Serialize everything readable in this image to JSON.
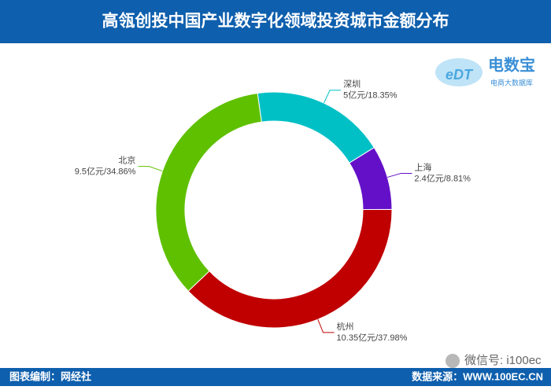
{
  "header": {
    "title": "高瓴创投中国产业数字化领域投资城市金额分布"
  },
  "logo": {
    "mark": "eDT",
    "name": "电数宝",
    "tagline": "电商大数据库"
  },
  "chart_data": {
    "type": "donut",
    "categories": [
      "深圳",
      "上海",
      "杭州",
      "北京"
    ],
    "values": [
      18.35,
      8.81,
      37.98,
      34.86
    ],
    "value_labels": [
      "5亿元/18.35%",
      "2.4亿元/8.81%",
      "10.35亿元/37.98%",
      "9.5亿元/34.86%"
    ],
    "colors": [
      "#00c0c6",
      "#6410c8",
      "#c00000",
      "#5fc000"
    ]
  },
  "watermark": "微信号: i100ec",
  "footer": {
    "left": "图表编制：网经社",
    "right": "数据来源：WWW.100EC.CN"
  }
}
